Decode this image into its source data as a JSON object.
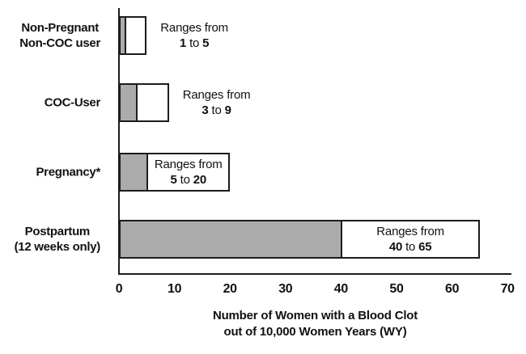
{
  "chart_data": {
    "type": "bar",
    "orientation": "horizontal",
    "title": "",
    "xlabel_lines": [
      "Number of Women with a Blood Clot",
      "out of 10,000 Women Years (WY)"
    ],
    "x_ticks": [
      "0",
      "10",
      "20",
      "30",
      "40",
      "50",
      "60",
      "70"
    ],
    "xlim": [
      0,
      70
    ],
    "grid": false,
    "annotation_prefix": "Ranges from",
    "annotation_conjunction": "to",
    "bars": [
      {
        "category_lines": [
          "Non-Pregnant",
          "Non-COC user"
        ],
        "low": 1,
        "high": 5,
        "annotation_inside": false
      },
      {
        "category_lines": [
          "COC-User"
        ],
        "low": 3,
        "high": 9,
        "annotation_inside": false
      },
      {
        "category_lines": [
          "Pregnancy*"
        ],
        "low": 5,
        "high": 20,
        "annotation_inside": true
      },
      {
        "category_lines": [
          "Postpartum",
          "(12 weeks only)"
        ],
        "low": 40,
        "high": 65,
        "annotation_inside": true
      }
    ],
    "colors": {
      "below_range_fill": "#ababab",
      "range_fill": "#ffffff",
      "border": "#1c1c1c",
      "text": "#111111",
      "background": "#ffffff"
    }
  }
}
